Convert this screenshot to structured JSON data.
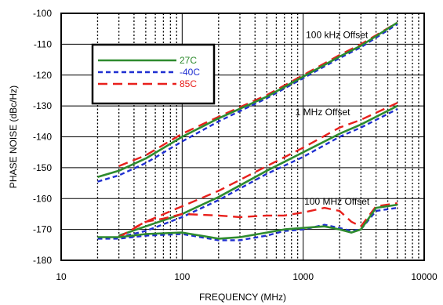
{
  "chart_data": {
    "type": "line",
    "title": "",
    "xlabel": "FREQUENCY (MHz)",
    "ylabel": "PHASE NOISE (dBc/Hz)",
    "xscale": "log",
    "xlim": [
      10,
      10000
    ],
    "ylim": [
      -180,
      -100
    ],
    "xticks": [
      "10",
      "100",
      "1000",
      "10000"
    ],
    "yticks": [
      "-100",
      "-110",
      "-120",
      "-130",
      "-140",
      "-150",
      "-160",
      "-170",
      "-180"
    ],
    "grid": {
      "y_major": "solid",
      "x_minor": "dotted"
    },
    "legend": {
      "placement": "top-left",
      "entries": [
        {
          "name": "27C",
          "color": "#2e8b2e",
          "dash": "solid"
        },
        {
          "name": "-40C",
          "color": "#1f2fd1",
          "dash": "short-dash"
        },
        {
          "name": "85C",
          "color": "#e8201c",
          "dash": "long-dash"
        }
      ]
    },
    "annotations": [
      {
        "text": "100 kHz Offset",
        "x": 1900,
        "y": -107
      },
      {
        "text": "1 MHz Offset",
        "x": 1450,
        "y": -132
      },
      {
        "text": "100 MHz Offset",
        "x": 1900,
        "y": -161
      }
    ],
    "groups": [
      {
        "offset": "100 kHz Offset",
        "series": [
          {
            "name": "27C",
            "x": [
              20,
              30,
              50,
              100,
              200,
              500,
              1000,
              2000,
              3000,
              6000
            ],
            "y": [
              -153,
              -151,
              -147,
              -140,
              -134,
              -127,
              -120.5,
              -114,
              -110.5,
              -103
            ]
          },
          {
            "name": "-40C",
            "x": [
              20,
              30,
              50,
              100,
              200,
              500,
              1000,
              2000,
              3000,
              6000
            ],
            "y": [
              -154.5,
              -152.5,
              -148.5,
              -141.5,
              -135,
              -127.5,
              -121,
              -114.5,
              -111,
              -103.5
            ]
          },
          {
            "name": "85C",
            "x": [
              30,
              50,
              100,
              200,
              500,
              1000,
              2000,
              3000,
              6000
            ],
            "y": [
              -149.5,
              -146,
              -139,
              -133.5,
              -126.5,
              -120,
              -113.5,
              -110,
              -103
            ]
          }
        ]
      },
      {
        "offset": "1 MHz Offset",
        "series": [
          {
            "name": "27C",
            "x": [
              30,
              50,
              100,
              200,
              500,
              1000,
              2000,
              3000,
              6000
            ],
            "y": [
              -172,
              -169,
              -165,
              -159.5,
              -151,
              -145,
              -139,
              -136,
              -130
            ]
          },
          {
            "name": "-40C",
            "x": [
              30,
              50,
              100,
              200,
              500,
              1000,
              2000,
              3000,
              6000
            ],
            "y": [
              -172.5,
              -170.5,
              -166,
              -160.5,
              -152,
              -146.5,
              -140,
              -137,
              -131
            ]
          },
          {
            "name": "85C",
            "x": [
              40,
              50,
              100,
              200,
              500,
              1000,
              2000,
              3000,
              6000
            ],
            "y": [
              -169.5,
              -167.5,
              -162.5,
              -157.5,
              -149.5,
              -143.5,
              -137,
              -134.5,
              -129
            ]
          }
        ]
      },
      {
        "offset": "100 MHz Offset",
        "series": [
          {
            "name": "27C",
            "x": [
              20,
              30,
              50,
              100,
              200,
              300,
              500,
              700,
              1000,
              1500,
              2000,
              2500,
              3000,
              4000,
              6000
            ],
            "y": [
              -172.5,
              -172.5,
              -171.5,
              -171,
              -173,
              -172.5,
              -171,
              -170,
              -169.5,
              -169,
              -170,
              -171,
              -170,
              -163,
              -162
            ]
          },
          {
            "name": "-40C",
            "x": [
              20,
              30,
              50,
              100,
              200,
              300,
              500,
              700,
              1000,
              1500,
              2000,
              2500,
              3000,
              4000,
              6000
            ],
            "y": [
              -173,
              -173,
              -172,
              -171.5,
              -173.5,
              -173.5,
              -172,
              -170.5,
              -170,
              -168.5,
              -169.5,
              -170.5,
              -170,
              -164,
              -163
            ]
          },
          {
            "name": "85C",
            "x": [
              30,
              50,
              70,
              100,
              200,
              300,
              500,
              700,
              1000,
              1500,
              2000,
              2500,
              3000,
              4000,
              6000
            ],
            "y": [
              -172.5,
              -167.5,
              -166.5,
              -165,
              -165.5,
              -166,
              -165.5,
              -165.5,
              -164.5,
              -163,
              -164,
              -167.5,
              -169,
              -162.5,
              -161.5
            ]
          }
        ]
      }
    ]
  }
}
